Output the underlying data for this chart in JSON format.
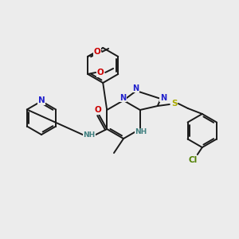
{
  "bg_color": "#ececec",
  "bond_color": "#1a1a1a",
  "atom_colors": {
    "N": "#2020cc",
    "O": "#cc0000",
    "S": "#aaaa00",
    "Cl": "#508000",
    "H_atom": "#408080",
    "C": "#1a1a1a"
  },
  "figsize": [
    3.0,
    3.0
  ],
  "dpi": 100
}
